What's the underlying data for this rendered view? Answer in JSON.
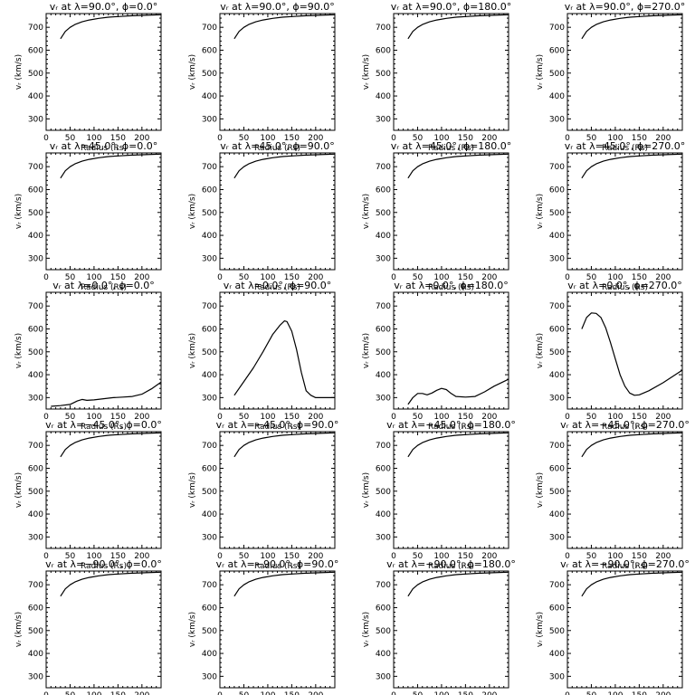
{
  "figure": {
    "xlabel": "Radius (Rs)",
    "ylabel": "vᵣ (km/s)",
    "xlim": [
      0,
      240
    ],
    "ylim": [
      250,
      760
    ],
    "xticks": [
      0,
      50,
      100,
      150,
      200
    ],
    "yticks": [
      300,
      400,
      500,
      600,
      700
    ],
    "line_color": "#000000"
  },
  "chart_data": [
    {
      "type": "line",
      "title": "vᵣ at λ=90.0°, ϕ=0.0°",
      "xlabel": "Radius (Rs)",
      "ylabel": "vᵣ (km/s)",
      "xlim": [
        0,
        240
      ],
      "ylim": [
        250,
        760
      ],
      "series": [
        {
          "x": [
            30,
            40,
            50,
            60,
            75,
            90,
            110,
            130,
            150,
            175,
            200,
            240
          ],
          "values": [
            650,
            682,
            700,
            712,
            724,
            732,
            739,
            744,
            747,
            750,
            752,
            755
          ]
        }
      ]
    },
    {
      "type": "line",
      "title": "vᵣ at λ=90.0°, ϕ=90.0°",
      "xlabel": "Radius (Rs)",
      "ylabel": "vᵣ (km/s)",
      "xlim": [
        0,
        240
      ],
      "ylim": [
        250,
        760
      ],
      "series": [
        {
          "x": [
            30,
            40,
            50,
            60,
            75,
            90,
            110,
            130,
            150,
            175,
            200,
            240
          ],
          "values": [
            650,
            682,
            700,
            712,
            724,
            732,
            739,
            744,
            747,
            750,
            752,
            755
          ]
        }
      ]
    },
    {
      "type": "line",
      "title": "vᵣ at λ=90.0°, ϕ=180.0°",
      "xlabel": "Radius (Rs)",
      "ylabel": "vᵣ (km/s)",
      "xlim": [
        0,
        240
      ],
      "ylim": [
        250,
        760
      ],
      "series": [
        {
          "x": [
            30,
            40,
            50,
            60,
            75,
            90,
            110,
            130,
            150,
            175,
            200,
            240
          ],
          "values": [
            650,
            682,
            700,
            712,
            724,
            732,
            739,
            744,
            747,
            750,
            752,
            755
          ]
        }
      ]
    },
    {
      "type": "line",
      "title": "vᵣ at λ=90.0°, ϕ=270.0°",
      "xlabel": "Radius (Rs)",
      "ylabel": "vᵣ (km/s)",
      "xlim": [
        0,
        240
      ],
      "ylim": [
        250,
        760
      ],
      "series": [
        {
          "x": [
            30,
            40,
            50,
            60,
            75,
            90,
            110,
            130,
            150,
            175,
            200,
            240
          ],
          "values": [
            650,
            682,
            700,
            712,
            724,
            732,
            739,
            744,
            747,
            750,
            752,
            755
          ]
        }
      ]
    },
    {
      "type": "line",
      "title": "vᵣ at λ=45.0°, ϕ=0.0°",
      "xlabel": "Radius (Rs)",
      "ylabel": "vᵣ (km/s)",
      "xlim": [
        0,
        240
      ],
      "ylim": [
        250,
        760
      ],
      "series": [
        {
          "x": [
            30,
            40,
            50,
            60,
            75,
            90,
            110,
            130,
            150,
            175,
            200,
            240
          ],
          "values": [
            650,
            682,
            700,
            712,
            724,
            732,
            739,
            744,
            747,
            750,
            752,
            755
          ]
        }
      ]
    },
    {
      "type": "line",
      "title": "vᵣ at λ=45.0°, ϕ=90.0°",
      "xlabel": "Radius (Rs)",
      "ylabel": "vᵣ (km/s)",
      "xlim": [
        0,
        240
      ],
      "ylim": [
        250,
        760
      ],
      "series": [
        {
          "x": [
            30,
            40,
            50,
            60,
            75,
            90,
            110,
            130,
            150,
            175,
            200,
            240
          ],
          "values": [
            650,
            682,
            700,
            712,
            724,
            732,
            739,
            744,
            747,
            750,
            752,
            755
          ]
        }
      ]
    },
    {
      "type": "line",
      "title": "vᵣ at λ=45.0°, ϕ=180.0°",
      "xlabel": "Radius (Rs)",
      "ylabel": "vᵣ (km/s)",
      "xlim": [
        0,
        240
      ],
      "ylim": [
        250,
        760
      ],
      "series": [
        {
          "x": [
            30,
            40,
            50,
            60,
            75,
            90,
            110,
            130,
            150,
            175,
            200,
            240
          ],
          "values": [
            650,
            682,
            700,
            712,
            724,
            732,
            739,
            744,
            747,
            750,
            752,
            755
          ]
        }
      ]
    },
    {
      "type": "line",
      "title": "vᵣ at λ=45.0°, ϕ=270.0°",
      "xlabel": "Radius (Rs)",
      "ylabel": "vᵣ (km/s)",
      "xlim": [
        0,
        240
      ],
      "ylim": [
        250,
        760
      ],
      "series": [
        {
          "x": [
            30,
            40,
            50,
            60,
            75,
            90,
            110,
            130,
            150,
            175,
            200,
            240
          ],
          "values": [
            650,
            682,
            700,
            712,
            724,
            732,
            739,
            744,
            747,
            750,
            752,
            755
          ]
        }
      ]
    },
    {
      "type": "line",
      "title": "vᵣ at λ=0.0°, ϕ=0.0°",
      "xlabel": "Radius (Rs)",
      "ylabel": "vᵣ (km/s)",
      "xlim": [
        0,
        240
      ],
      "ylim": [
        250,
        760
      ],
      "series": [
        {
          "x": [
            10,
            30,
            50,
            65,
            75,
            85,
            100,
            120,
            140,
            160,
            180,
            200,
            220,
            240
          ],
          "values": [
            262,
            265,
            270,
            285,
            292,
            288,
            290,
            295,
            300,
            302,
            305,
            315,
            338,
            368
          ]
        }
      ]
    },
    {
      "type": "line",
      "title": "vᵣ at λ=0.0°, ϕ=90.0°",
      "xlabel": "Radius (Rs)",
      "ylabel": "vᵣ (km/s)",
      "xlim": [
        0,
        240
      ],
      "ylim": [
        250,
        760
      ],
      "series": [
        {
          "x": [
            30,
            50,
            70,
            90,
            110,
            125,
            135,
            140,
            150,
            160,
            170,
            180,
            190,
            200,
            210,
            240
          ],
          "values": [
            310,
            370,
            430,
            500,
            575,
            615,
            635,
            632,
            590,
            510,
            410,
            330,
            310,
            300,
            300,
            300
          ]
        }
      ]
    },
    {
      "type": "line",
      "title": "vᵣ at λ=0.0°, ϕ=180.0°",
      "xlabel": "Radius (Rs)",
      "ylabel": "vᵣ (km/s)",
      "xlim": [
        0,
        240
      ],
      "ylim": [
        250,
        760
      ],
      "series": [
        {
          "x": [
            30,
            40,
            50,
            60,
            70,
            80,
            90,
            100,
            110,
            120,
            130,
            150,
            170,
            190,
            210,
            240
          ],
          "values": [
            270,
            300,
            318,
            318,
            312,
            320,
            332,
            340,
            335,
            318,
            305,
            302,
            305,
            325,
            350,
            380
          ]
        }
      ]
    },
    {
      "type": "line",
      "title": "vᵣ at λ=0.0°, ϕ=270.0°",
      "xlabel": "Radius (Rs)",
      "ylabel": "vᵣ (km/s)",
      "xlim": [
        0,
        240
      ],
      "ylim": [
        250,
        760
      ],
      "series": [
        {
          "x": [
            30,
            40,
            50,
            60,
            70,
            80,
            90,
            100,
            110,
            120,
            130,
            140,
            150,
            170,
            200,
            240
          ],
          "values": [
            600,
            650,
            670,
            668,
            650,
            605,
            540,
            470,
            400,
            350,
            320,
            310,
            312,
            330,
            365,
            420
          ]
        }
      ]
    },
    {
      "type": "line",
      "title": "vᵣ at λ=−45.0°, ϕ=0.0°",
      "xlabel": "Radius (Rs)",
      "ylabel": "vᵣ (km/s)",
      "xlim": [
        0,
        240
      ],
      "ylim": [
        250,
        760
      ],
      "series": [
        {
          "x": [
            30,
            40,
            50,
            60,
            75,
            90,
            110,
            130,
            150,
            175,
            200,
            240
          ],
          "values": [
            650,
            682,
            700,
            712,
            724,
            732,
            739,
            744,
            747,
            750,
            752,
            755
          ]
        }
      ]
    },
    {
      "type": "line",
      "title": "vᵣ at λ=−45.0°, ϕ=90.0°",
      "xlabel": "Radius (Rs)",
      "ylabel": "vᵣ (km/s)",
      "xlim": [
        0,
        240
      ],
      "ylim": [
        250,
        760
      ],
      "series": [
        {
          "x": [
            30,
            40,
            50,
            60,
            75,
            90,
            110,
            130,
            150,
            175,
            200,
            240
          ],
          "values": [
            650,
            682,
            700,
            712,
            724,
            732,
            739,
            744,
            747,
            750,
            752,
            755
          ]
        }
      ]
    },
    {
      "type": "line",
      "title": "vᵣ at λ=−45.0°, ϕ=180.0°",
      "xlabel": "Radius (Rs)",
      "ylabel": "vᵣ (km/s)",
      "xlim": [
        0,
        240
      ],
      "ylim": [
        250,
        760
      ],
      "series": [
        {
          "x": [
            30,
            40,
            50,
            60,
            75,
            90,
            110,
            130,
            150,
            175,
            200,
            240
          ],
          "values": [
            650,
            682,
            700,
            712,
            724,
            732,
            739,
            744,
            747,
            750,
            752,
            755
          ]
        }
      ]
    },
    {
      "type": "line",
      "title": "vᵣ at λ=−45.0°, ϕ=270.0°",
      "xlabel": "Radius (Rs)",
      "ylabel": "vᵣ (km/s)",
      "xlim": [
        0,
        240
      ],
      "ylim": [
        250,
        760
      ],
      "series": [
        {
          "x": [
            30,
            40,
            50,
            60,
            75,
            90,
            110,
            130,
            150,
            175,
            200,
            240
          ],
          "values": [
            650,
            682,
            700,
            712,
            724,
            732,
            739,
            744,
            747,
            750,
            752,
            755
          ]
        }
      ]
    },
    {
      "type": "line",
      "title": "vᵣ at λ=−90.0°, ϕ=0.0°",
      "xlabel": "Radius (Rs)",
      "ylabel": "vᵣ (km/s)",
      "xlim": [
        0,
        240
      ],
      "ylim": [
        250,
        760
      ],
      "series": [
        {
          "x": [
            30,
            40,
            50,
            60,
            75,
            90,
            110,
            130,
            150,
            175,
            200,
            240
          ],
          "values": [
            650,
            682,
            700,
            712,
            724,
            732,
            739,
            744,
            747,
            750,
            752,
            755
          ]
        }
      ]
    },
    {
      "type": "line",
      "title": "vᵣ at λ=−90.0°, ϕ=90.0°",
      "xlabel": "Radius (Rs)",
      "ylabel": "vᵣ (km/s)",
      "xlim": [
        0,
        240
      ],
      "ylim": [
        250,
        760
      ],
      "series": [
        {
          "x": [
            30,
            40,
            50,
            60,
            75,
            90,
            110,
            130,
            150,
            175,
            200,
            240
          ],
          "values": [
            650,
            682,
            700,
            712,
            724,
            732,
            739,
            744,
            747,
            750,
            752,
            755
          ]
        }
      ]
    },
    {
      "type": "line",
      "title": "vᵣ at λ=−90.0°, ϕ=180.0°",
      "xlabel": "Radius (Rs)",
      "ylabel": "vᵣ (km/s)",
      "xlim": [
        0,
        240
      ],
      "ylim": [
        250,
        760
      ],
      "series": [
        {
          "x": [
            30,
            40,
            50,
            60,
            75,
            90,
            110,
            130,
            150,
            175,
            200,
            240
          ],
          "values": [
            650,
            682,
            700,
            712,
            724,
            732,
            739,
            744,
            747,
            750,
            752,
            755
          ]
        }
      ]
    },
    {
      "type": "line",
      "title": "vᵣ at λ=−90.0°, ϕ=270.0°",
      "xlabel": "Radius (Rs)",
      "ylabel": "vᵣ (km/s)",
      "xlim": [
        0,
        240
      ],
      "ylim": [
        250,
        760
      ],
      "series": [
        {
          "x": [
            30,
            40,
            50,
            60,
            75,
            90,
            110,
            130,
            150,
            175,
            200,
            240
          ],
          "values": [
            650,
            682,
            700,
            712,
            724,
            732,
            739,
            744,
            747,
            750,
            752,
            755
          ]
        }
      ]
    }
  ]
}
